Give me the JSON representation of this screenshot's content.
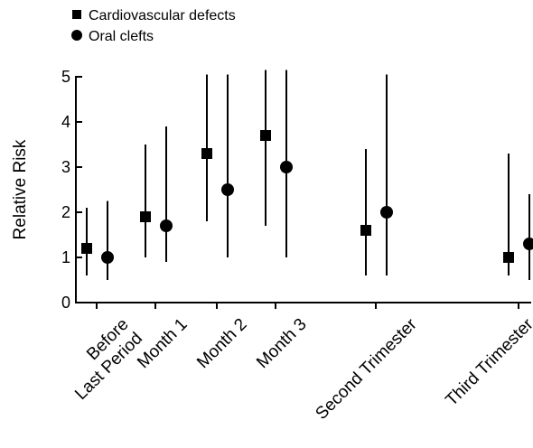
{
  "chart_data": {
    "type": "scatter",
    "title": "",
    "xlabel": "",
    "ylabel": "Relative Risk",
    "ylim": [
      0,
      5
    ],
    "yticks": [
      0,
      1,
      2,
      3,
      4,
      5
    ],
    "grid": false,
    "legend_position": "top-left",
    "categories": [
      "Before\nLast Period",
      "Month 1",
      "Month 2",
      "Month 3",
      "Second Trimester",
      "Third Trimester"
    ],
    "series": [
      {
        "name": "Cardiovascular defects",
        "marker": "square",
        "color": "#000000",
        "values": [
          1.2,
          1.9,
          3.3,
          3.7,
          1.6,
          1.0
        ],
        "lower": [
          0.6,
          1.0,
          1.8,
          1.7,
          0.6,
          0.6
        ],
        "upper": [
          2.1,
          3.5,
          5.05,
          5.15,
          3.4,
          3.3
        ]
      },
      {
        "name": "Oral clefts",
        "marker": "circle",
        "color": "#000000",
        "values": [
          1.0,
          1.7,
          2.5,
          3.0,
          2.0,
          1.3
        ],
        "lower": [
          0.5,
          0.9,
          1.0,
          1.0,
          0.6,
          0.5
        ],
        "upper": [
          2.25,
          3.9,
          5.05,
          5.15,
          5.05,
          2.4
        ]
      }
    ]
  }
}
